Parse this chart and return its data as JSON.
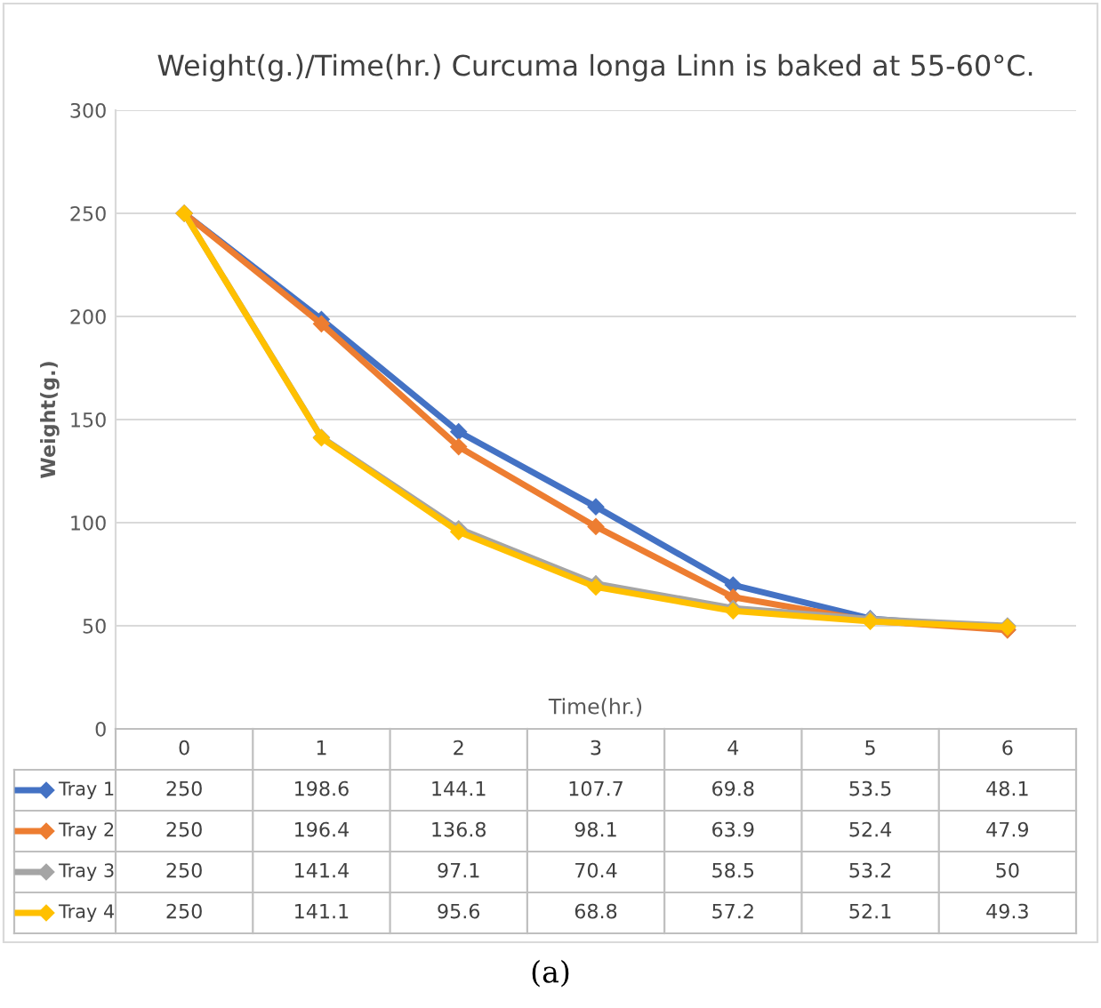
{
  "chart_data": {
    "type": "line",
    "title": "Weight(g.)/Time(hr.) Curcuma longa Linn is baked at 55-60°C.",
    "xlabel": "Time(hr.)",
    "ylabel": "Weight(g.)",
    "categories": [
      "0",
      "1",
      "2",
      "3",
      "4",
      "5",
      "6"
    ],
    "series": [
      {
        "name": "Tray 1",
        "color": "#4472c4",
        "values": [
          250,
          198.6,
          144.1,
          107.7,
          69.8,
          53.5,
          48.1
        ]
      },
      {
        "name": "Tray 2",
        "color": "#ed7d31",
        "values": [
          250,
          196.4,
          136.8,
          98.1,
          63.9,
          52.4,
          47.9
        ]
      },
      {
        "name": "Tray 3",
        "color": "#a5a5a5",
        "values": [
          250,
          141.4,
          97.1,
          70.4,
          58.5,
          53.2,
          50
        ]
      },
      {
        "name": "Tray 4",
        "color": "#ffc000",
        "values": [
          250,
          141.1,
          95.6,
          68.8,
          57.2,
          52.1,
          49.3
        ]
      }
    ],
    "ylim": [
      0,
      300
    ],
    "yticks": [
      0,
      50,
      100,
      150,
      200,
      250,
      300
    ],
    "grid": "y",
    "marker": "diamond",
    "line_style": "solid",
    "legend": "bottom",
    "data_labels": true,
    "annotations": [
      "(a)"
    ]
  }
}
